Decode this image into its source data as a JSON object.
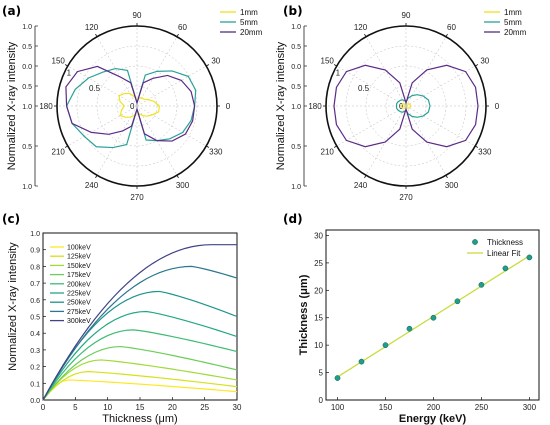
{
  "chart_data": [
    {
      "panel": "(a)",
      "type": "polar",
      "ylabel": "Normalized X-ray intensity",
      "angle_ticks": [
        "0",
        "30",
        "60",
        "90",
        "120",
        "150",
        "180",
        "210",
        "240",
        "270",
        "300",
        "330"
      ],
      "radial_ticks_top": [
        "1.0",
        "0.5",
        "0.0",
        "0.5",
        "1.0"
      ],
      "radial_ticks_bottom": [
        "0.5",
        "1.0"
      ],
      "radial_ticks_left": [
        "0.5",
        "0"
      ],
      "radial_tick_inside": "1",
      "series": [
        {
          "name": "1mm",
          "color": "#f2e21d",
          "theta": [
            0,
            15,
            30,
            45,
            60,
            75,
            90,
            105,
            120,
            135,
            150,
            165,
            180,
            195,
            210,
            225,
            240,
            255,
            270,
            285,
            300,
            315,
            330,
            345
          ],
          "r": [
            0.28,
            0.22,
            0.16,
            0.12,
            0.12,
            0.1,
            0.06,
            0.12,
            0.18,
            0.22,
            0.26,
            0.22,
            0.16,
            0.2,
            0.24,
            0.2,
            0.16,
            0.12,
            0.06,
            0.1,
            0.14,
            0.18,
            0.22,
            0.28
          ]
        },
        {
          "name": "5mm",
          "color": "#2aa198",
          "theta": [
            0,
            15,
            30,
            45,
            60,
            75,
            90,
            105,
            120,
            135,
            150,
            165,
            180,
            195,
            210,
            225,
            240,
            255,
            270,
            285,
            300,
            315,
            330,
            345
          ],
          "r": [
            0.72,
            0.76,
            0.74,
            0.62,
            0.5,
            0.4,
            0.04,
            0.46,
            0.54,
            0.6,
            0.7,
            0.8,
            0.88,
            0.84,
            0.76,
            0.72,
            0.6,
            0.5,
            0.04,
            0.44,
            0.5,
            0.58,
            0.66,
            0.7
          ]
        },
        {
          "name": "20mm",
          "color": "#5b2a86",
          "theta": [
            0,
            15,
            30,
            45,
            60,
            75,
            90,
            105,
            120,
            135,
            150,
            165,
            180,
            195,
            210,
            225,
            240,
            255,
            270,
            285,
            300,
            315,
            330,
            345
          ],
          "r": [
            0.72,
            0.7,
            0.64,
            0.54,
            0.4,
            0.3,
            0.04,
            0.3,
            0.42,
            0.7,
            0.86,
            0.92,
            0.88,
            0.84,
            0.66,
            0.5,
            0.36,
            0.26,
            0.04,
            0.36,
            0.5,
            0.62,
            0.7,
            0.72
          ]
        }
      ]
    },
    {
      "panel": "(b)",
      "type": "polar",
      "ylabel": "Normalized X-ray intensity",
      "angle_ticks": [
        "0",
        "30",
        "60",
        "90",
        "120",
        "150",
        "180",
        "210",
        "240",
        "270",
        "300",
        "330"
      ],
      "radial_ticks_top": [
        "1.0",
        "0.5",
        "0.0",
        "0.5",
        "1.0"
      ],
      "radial_ticks_bottom": [
        "0.5",
        "1.0"
      ],
      "radial_ticks_left": [
        "0.5",
        "0"
      ],
      "radial_tick_inside": "1",
      "series": [
        {
          "name": "1mm",
          "color": "#f2e21d",
          "theta": [
            0,
            30,
            60,
            90,
            120,
            150,
            180,
            210,
            240,
            270,
            300,
            330
          ],
          "r": [
            0.06,
            0.05,
            0.03,
            0.02,
            0.03,
            0.05,
            0.06,
            0.05,
            0.03,
            0.02,
            0.03,
            0.05
          ]
        },
        {
          "name": "5mm",
          "color": "#2aa198",
          "theta": [
            0,
            15,
            30,
            45,
            60,
            75,
            90,
            105,
            120,
            135,
            150,
            165,
            180,
            195,
            210,
            225,
            240,
            255,
            270,
            285,
            300,
            315,
            330,
            345
          ],
          "r": [
            0.3,
            0.29,
            0.25,
            0.2,
            0.15,
            0.1,
            0.05,
            0.07,
            0.09,
            0.1,
            0.11,
            0.12,
            0.12,
            0.12,
            0.11,
            0.1,
            0.09,
            0.07,
            0.05,
            0.1,
            0.15,
            0.2,
            0.25,
            0.29
          ]
        },
        {
          "name": "20mm",
          "color": "#5b2a86",
          "theta": [
            0,
            15,
            30,
            45,
            60,
            75,
            90,
            105,
            120,
            135,
            150,
            165,
            180,
            195,
            210,
            225,
            240,
            255,
            270,
            285,
            300,
            315,
            330,
            345
          ],
          "r": [
            0.9,
            0.9,
            0.86,
            0.72,
            0.52,
            0.3,
            0.04,
            0.3,
            0.52,
            0.72,
            0.86,
            0.9,
            0.9,
            0.9,
            0.86,
            0.72,
            0.52,
            0.3,
            0.04,
            0.3,
            0.52,
            0.72,
            0.86,
            0.9
          ]
        }
      ]
    },
    {
      "panel": "(c)",
      "type": "line",
      "xlabel": "Thickness (μm)",
      "ylabel": "Normalized X-ray intensity",
      "xlim": [
        0,
        30
      ],
      "ylim": [
        0,
        1.0
      ],
      "xticks": [
        "0",
        "5",
        "10",
        "15",
        "20",
        "25",
        "30"
      ],
      "yticks": [
        "0.0",
        "0.1",
        "0.2",
        "0.3",
        "0.4",
        "0.5",
        "0.6",
        "0.7",
        "0.8",
        "0.9",
        "1.0"
      ],
      "x": [
        0,
        1,
        2,
        3,
        4,
        5,
        6,
        7,
        8,
        9,
        10,
        11,
        12,
        13,
        14,
        15,
        16,
        17,
        18,
        19,
        20,
        21,
        22,
        23,
        24,
        25,
        26,
        27,
        28,
        29,
        30
      ],
      "series": [
        {
          "name": "100keV",
          "color": "#fde725",
          "peak_x": 4,
          "peak_y": 0.12,
          "end_y": 0.05
        },
        {
          "name": "125keV",
          "color": "#d5e21a",
          "peak_x": 7,
          "peak_y": 0.17,
          "end_y": 0.08
        },
        {
          "name": "150keV",
          "color": "#a0da39",
          "peak_x": 9,
          "peak_y": 0.24,
          "end_y": 0.12
        },
        {
          "name": "175keV",
          "color": "#6ccd5a",
          "peak_x": 12,
          "peak_y": 0.32,
          "end_y": 0.18
        },
        {
          "name": "200keV",
          "color": "#3fbc73",
          "peak_x": 14,
          "peak_y": 0.42,
          "end_y": 0.29
        },
        {
          "name": "225keV",
          "color": "#22a884",
          "peak_x": 16,
          "peak_y": 0.53,
          "end_y": 0.38
        },
        {
          "name": "250keV",
          "color": "#1f948c",
          "peak_x": 18,
          "peak_y": 0.65,
          "end_y": 0.5
        },
        {
          "name": "275keV",
          "color": "#2a788e",
          "peak_x": 23,
          "peak_y": 0.8,
          "end_y": 0.73
        },
        {
          "name": "300keV",
          "color": "#414487",
          "peak_x": 26,
          "peak_y": 0.93,
          "end_y": 0.93
        }
      ]
    },
    {
      "panel": "(d)",
      "type": "scatter",
      "xlabel": "Energy (keV)",
      "ylabel": "Thickness (μm)",
      "xlim": [
        88,
        310
      ],
      "ylim": [
        0,
        31
      ],
      "xticks": [
        "100",
        "150",
        "200",
        "250",
        "300"
      ],
      "yticks": [
        "0",
        "5",
        "10",
        "15",
        "20",
        "25",
        "30"
      ],
      "series": [
        {
          "name": "Thickness",
          "color": "#1f9e89",
          "x": [
            100,
            125,
            150,
            175,
            200,
            225,
            250,
            275,
            300
          ],
          "y": [
            4,
            7,
            10,
            13,
            15,
            18,
            21,
            24,
            26
          ]
        },
        {
          "name": "Linear Fit",
          "color": "#c8dc3c",
          "line": true,
          "x": [
            100,
            300
          ],
          "y": [
            4.2,
            26.3
          ]
        }
      ]
    }
  ]
}
